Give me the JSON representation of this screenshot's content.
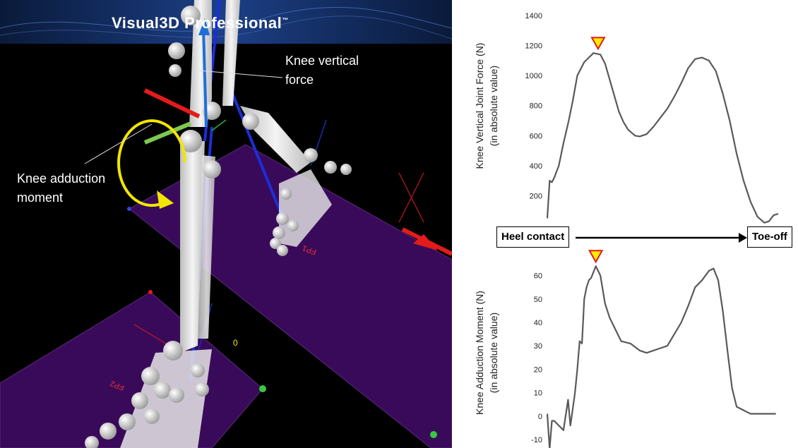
{
  "scene": {
    "app_title": "Visual3D",
    "app_title_suffix": "Professional",
    "app_title_tm": "™",
    "callouts": {
      "knee_vertical_force": [
        "Knee vertical",
        "force"
      ],
      "knee_adduction_moment": [
        "Knee adduction",
        "moment"
      ]
    },
    "plate_labels": [
      "FP2",
      "FP1"
    ],
    "colors": {
      "background": "#000000",
      "force_plate": "#3a0a5a",
      "bone": "#e6e6e6",
      "moment_arrow": "#f2e600",
      "force_vector": "#1f6fd6",
      "axis_red": "#e31b1b",
      "axis_green": "#7ec850"
    }
  },
  "phase": {
    "start_label": "Heel contact",
    "end_label": "Toe-off"
  },
  "chart_data": [
    {
      "type": "line",
      "title": "",
      "xlabel": "",
      "ylabel_lines": [
        "Knee Vertical Joint Force (N)",
        "(in absolute value)"
      ],
      "yticks": [
        200,
        400,
        600,
        800,
        1000,
        1200,
        1400
      ],
      "ylim": [
        0,
        1400
      ],
      "xlim": [
        0,
        100
      ],
      "series": [
        {
          "x": [
            0,
            1,
            2,
            3,
            5,
            7,
            9,
            11,
            13,
            16,
            20,
            23,
            25,
            28,
            31,
            33,
            35,
            38,
            40,
            43,
            46,
            49,
            52,
            55,
            58,
            61,
            64,
            67,
            70,
            73,
            76,
            79,
            82,
            85,
            88,
            91,
            94,
            96,
            98,
            100
          ],
          "values": [
            50,
            300,
            290,
            320,
            400,
            550,
            680,
            830,
            1000,
            1090,
            1150,
            1140,
            1080,
            920,
            760,
            690,
            640,
            600,
            595,
            610,
            660,
            720,
            780,
            860,
            950,
            1050,
            1110,
            1120,
            1100,
            1030,
            880,
            700,
            480,
            300,
            160,
            60,
            20,
            30,
            70,
            80
          ],
          "color": "#595959"
        }
      ],
      "peak_marker": {
        "x": 22,
        "y": 1150,
        "color": "#ffeb00",
        "stroke": "#e21b1b"
      }
    },
    {
      "type": "line",
      "title": "",
      "xlabel": "",
      "ylabel_lines": [
        "Knee Adduction Moment  (N)",
        "(in absolute value)"
      ],
      "yticks": [
        -10,
        0,
        10,
        20,
        30,
        40,
        50,
        60
      ],
      "ylim": [
        -13,
        68
      ],
      "xlim": [
        0,
        100
      ],
      "series": [
        {
          "x": [
            0,
            1,
            2,
            3,
            5,
            7,
            9,
            10,
            11,
            12,
            13,
            14,
            15,
            16,
            17,
            18,
            19,
            21,
            23,
            25,
            27,
            29,
            32,
            36,
            40,
            43,
            46,
            49,
            52,
            55,
            58,
            61,
            64,
            67,
            70,
            72,
            74,
            76,
            78,
            80,
            82,
            84,
            86,
            88,
            90,
            93,
            96,
            99
          ],
          "values": [
            1,
            -14,
            -2,
            -2,
            -4,
            -6,
            7,
            -4,
            3,
            10,
            20,
            32,
            31,
            50,
            55,
            58,
            59,
            64,
            60,
            48,
            42,
            38,
            32,
            31,
            28,
            27,
            28,
            29,
            30,
            35,
            40,
            47,
            55,
            58,
            62,
            63,
            58,
            45,
            28,
            12,
            4,
            3,
            2,
            1,
            1,
            1,
            1,
            1
          ],
          "color": "#595959"
        }
      ],
      "peak_marker": {
        "x": 21,
        "y": 64,
        "color": "#ffeb00",
        "stroke": "#e21b1b"
      }
    }
  ]
}
